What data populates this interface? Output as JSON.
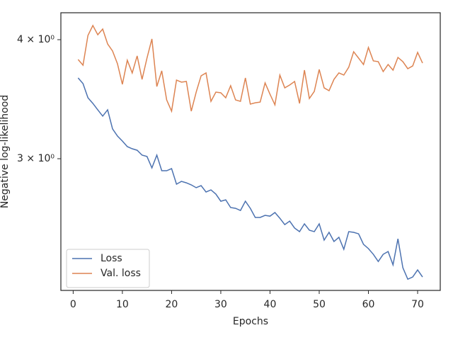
{
  "chart_data": {
    "type": "line",
    "xlabel": "Epochs",
    "ylabel": "Negative log-likelihood",
    "x": [
      1,
      2,
      3,
      4,
      5,
      6,
      7,
      8,
      9,
      10,
      11,
      12,
      13,
      14,
      15,
      16,
      17,
      18,
      19,
      20,
      21,
      22,
      23,
      24,
      25,
      26,
      27,
      28,
      29,
      30,
      31,
      32,
      33,
      34,
      35,
      36,
      37,
      38,
      39,
      40,
      41,
      42,
      43,
      44,
      45,
      46,
      47,
      48,
      49,
      50,
      51,
      52,
      53,
      54,
      55,
      56,
      57,
      58,
      59,
      60,
      61,
      62,
      63,
      64,
      65,
      66,
      67,
      68,
      69,
      70,
      71
    ],
    "series": [
      {
        "name": "Loss",
        "color": "#4c72b0",
        "values": [
          3.647,
          3.597,
          3.476,
          3.429,
          3.376,
          3.325,
          3.376,
          3.224,
          3.169,
          3.131,
          3.089,
          3.073,
          3.062,
          3.026,
          3.016,
          2.934,
          3.026,
          2.914,
          2.914,
          2.929,
          2.821,
          2.84,
          2.83,
          2.816,
          2.797,
          2.811,
          2.768,
          2.782,
          2.754,
          2.707,
          2.716,
          2.666,
          2.661,
          2.647,
          2.707,
          2.661,
          2.603,
          2.603,
          2.616,
          2.611,
          2.634,
          2.598,
          2.558,
          2.58,
          2.537,
          2.515,
          2.563,
          2.524,
          2.515,
          2.563,
          2.464,
          2.511,
          2.456,
          2.481,
          2.41,
          2.515,
          2.511,
          2.502,
          2.439,
          2.414,
          2.381,
          2.34,
          2.381,
          2.397,
          2.321,
          2.472,
          2.305,
          2.242,
          2.254,
          2.293,
          2.254
        ]
      },
      {
        "name": "Val. loss",
        "color": "#dd8452",
        "values": [
          3.813,
          3.761,
          4.041,
          4.139,
          4.048,
          4.104,
          3.959,
          3.892,
          3.774,
          3.591,
          3.806,
          3.691,
          3.846,
          3.634,
          3.826,
          4.007,
          3.572,
          3.71,
          3.458,
          3.365,
          3.628,
          3.61,
          3.616,
          3.365,
          3.524,
          3.666,
          3.691,
          3.446,
          3.524,
          3.518,
          3.476,
          3.579,
          3.458,
          3.446,
          3.647,
          3.423,
          3.434,
          3.44,
          3.603,
          3.506,
          3.417,
          3.672,
          3.56,
          3.585,
          3.616,
          3.429,
          3.716,
          3.47,
          3.53,
          3.722,
          3.56,
          3.536,
          3.634,
          3.691,
          3.672,
          3.742,
          3.885,
          3.826,
          3.767,
          3.925,
          3.8,
          3.793,
          3.703,
          3.767,
          3.716,
          3.832,
          3.793,
          3.729,
          3.754,
          3.879,
          3.78
        ]
      }
    ],
    "xlim": [
      -2.5,
      74.6
    ],
    "xticks": [
      0,
      10,
      20,
      30,
      40,
      50,
      60,
      70
    ],
    "ylim": [
      2.182,
      4.269
    ],
    "yscale": "log",
    "yticks": [
      {
        "value": 3,
        "label": "3 × 10⁰"
      },
      {
        "value": 4,
        "label": "4 × 10⁰"
      }
    ],
    "grid": false,
    "legend": "lower left"
  }
}
